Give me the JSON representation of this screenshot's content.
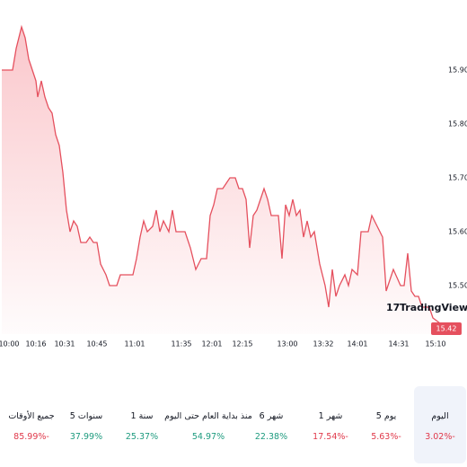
{
  "chart_data": {
    "type": "area",
    "color": "#e5505e",
    "x": [
      2,
      14,
      18,
      24,
      28,
      32,
      36,
      40,
      42,
      46,
      50,
      54,
      58,
      62,
      66,
      70,
      74,
      78,
      82,
      86,
      90,
      96,
      100,
      104,
      108,
      112,
      118,
      122,
      130,
      134,
      148,
      152,
      156,
      160,
      164,
      170,
      174,
      178,
      182,
      188,
      192,
      196,
      200,
      206,
      212,
      218,
      224,
      230,
      234,
      238,
      242,
      248,
      252,
      256,
      262,
      266,
      270,
      274,
      278,
      282,
      286,
      290,
      294,
      298,
      302,
      306,
      310,
      314,
      318,
      322,
      326,
      330,
      334,
      338,
      342,
      346,
      350,
      356,
      362,
      366,
      370,
      374,
      378,
      384,
      388,
      392,
      398,
      402,
      410,
      414,
      420,
      426,
      430,
      434,
      438,
      446,
      450,
      454,
      458,
      462,
      466,
      470,
      474,
      478,
      482,
      490
    ],
    "values": [
      15.9,
      15.9,
      15.94,
      15.98,
      15.96,
      15.92,
      15.9,
      15.88,
      15.85,
      15.88,
      15.85,
      15.83,
      15.82,
      15.78,
      15.76,
      15.71,
      15.64,
      15.6,
      15.62,
      15.61,
      15.58,
      15.58,
      15.59,
      15.58,
      15.58,
      15.54,
      15.52,
      15.5,
      15.5,
      15.52,
      15.52,
      15.55,
      15.59,
      15.62,
      15.6,
      15.61,
      15.64,
      15.6,
      15.62,
      15.6,
      15.64,
      15.6,
      15.6,
      15.6,
      15.57,
      15.53,
      15.55,
      15.55,
      15.63,
      15.65,
      15.68,
      15.68,
      15.69,
      15.7,
      15.7,
      15.68,
      15.68,
      15.66,
      15.57,
      15.63,
      15.64,
      15.66,
      15.68,
      15.66,
      15.63,
      15.63,
      15.63,
      15.55,
      15.65,
      15.63,
      15.66,
      15.63,
      15.64,
      15.59,
      15.62,
      15.59,
      15.6,
      15.54,
      15.5,
      15.46,
      15.53,
      15.48,
      15.5,
      15.52,
      15.5,
      15.53,
      15.52,
      15.6,
      15.6,
      15.63,
      15.61,
      15.59,
      15.49,
      15.51,
      15.53,
      15.5,
      15.5,
      15.56,
      15.49,
      15.48,
      15.48,
      15.46,
      15.46,
      15.46,
      15.44,
      15.43
    ],
    "xlim": [
      0,
      492
    ],
    "ylim": [
      15.41,
      16.03
    ],
    "xticks": [
      {
        "value": 10,
        "label": "10:00"
      },
      {
        "value": 40,
        "label": "10:16"
      },
      {
        "value": 72,
        "label": "10:31"
      },
      {
        "value": 108,
        "label": "10:45"
      },
      {
        "value": 150,
        "label": "11:01"
      },
      {
        "value": 202,
        "label": "11:35"
      },
      {
        "value": 236,
        "label": "12:01"
      },
      {
        "value": 270,
        "label": "12:15"
      },
      {
        "value": 320,
        "label": "13:00"
      },
      {
        "value": 360,
        "label": "13:32"
      },
      {
        "value": 398,
        "label": "14:01"
      },
      {
        "value": 444,
        "label": "14:31"
      },
      {
        "value": 485,
        "label": "15:10"
      }
    ],
    "yticks": [
      {
        "value": 15.5,
        "label": "15.50"
      },
      {
        "value": 15.6,
        "label": "15.60"
      },
      {
        "value": 15.7,
        "label": "15.70"
      },
      {
        "value": 15.8,
        "label": "15.80"
      },
      {
        "value": 15.9,
        "label": "15.90"
      }
    ],
    "grid": false,
    "last_price": 15.42,
    "logo": "TradingView"
  },
  "tabs": {
    "selected": 0,
    "items": [
      {
        "name": "اليوم",
        "change": -3.02,
        "change_label": "3.02%-"
      },
      {
        "name": "5 يوم",
        "change": -5.63,
        "change_label": "5.63%-"
      },
      {
        "name": "1 شهر",
        "change": -17.54,
        "change_label": "17.54%-"
      },
      {
        "name": "6 شهر",
        "change": 22.38,
        "change_label": "22.38%"
      },
      {
        "name": "منذ بداية العام حتى اليوم",
        "change": 54.97,
        "change_label": "54.97%"
      },
      {
        "name": "1 سنة",
        "change": 25.37,
        "change_label": "25.37%"
      },
      {
        "name": "5 سنوات",
        "change": 37.99,
        "change_label": "37.99%"
      },
      {
        "name": "جميع الأوقات",
        "change": -85.99,
        "change_label": "85.99%-"
      }
    ]
  }
}
